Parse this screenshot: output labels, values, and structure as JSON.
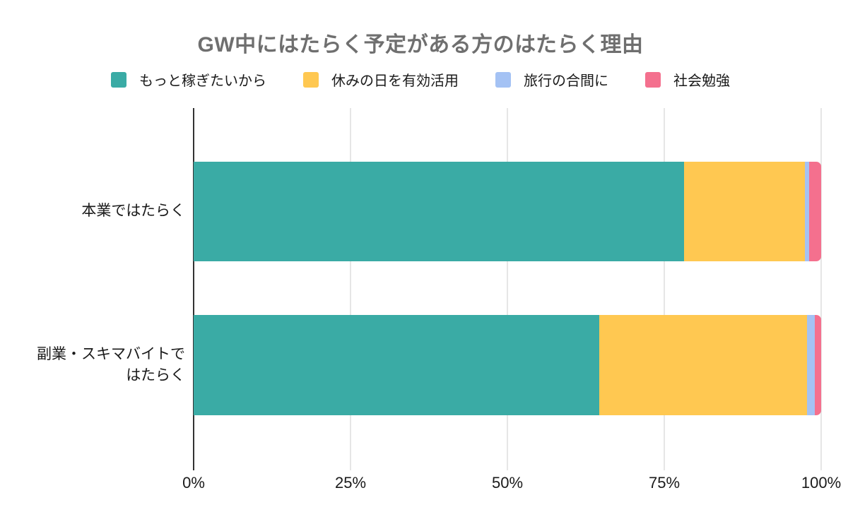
{
  "title": {
    "text": "GW中にはたらく予定がある方のはたらく理由",
    "color": "#6F6F6F"
  },
  "chart_data": {
    "type": "bar",
    "orientation": "horizontal",
    "stacked": true,
    "value_unit": "percent",
    "title": "GW中にはたらく予定がある方のはたらく理由",
    "categories": [
      "本業ではたらく",
      "副業・スキマバイトで\nはたらく"
    ],
    "series": [
      {
        "name": "もっと稼ぎたいから",
        "color": "#3AABA5",
        "values": [
          78.2,
          64.6
        ]
      },
      {
        "name": "休みの日を有効活用",
        "color": "#FFC851",
        "values": [
          19.2,
          33.1
        ]
      },
      {
        "name": "旅行の合間に",
        "color": "#A4C2F4",
        "values": [
          0.7,
          1.3
        ]
      },
      {
        "name": "社会勉強",
        "color": "#F4708E",
        "values": [
          1.9,
          1.0
        ]
      }
    ],
    "x_axis": {
      "min": 0,
      "max": 100,
      "tick_values": [
        0,
        25,
        50,
        75,
        100
      ],
      "tick_labels": [
        "0%",
        "25%",
        "50%",
        "75%",
        "100%"
      ]
    },
    "legend_position": "top",
    "grid": true,
    "gridline_color": "#CCCCCC",
    "axis_line_color": "#333333",
    "background_color": "#FFFFFF"
  }
}
